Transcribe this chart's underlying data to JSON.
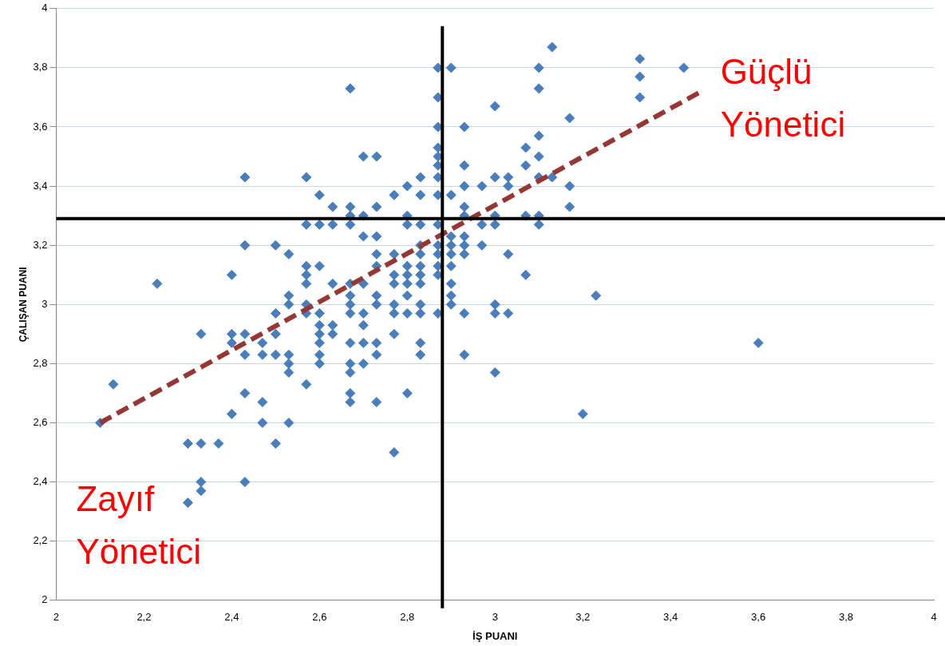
{
  "chart_data": {
    "type": "scatter",
    "xlabel": "İŞ PUANI",
    "ylabel": "ÇALIŞAN PUANI",
    "xlim": [
      2,
      4
    ],
    "ylim": [
      2,
      4
    ],
    "xticks": [
      2,
      {
        "value": 2.2,
        "label": "2,2"
      },
      {
        "value": 2.4,
        "label": "2,4"
      },
      {
        "value": 2.6,
        "label": "2,6"
      },
      {
        "value": 2.8,
        "label": "2,8"
      },
      3,
      {
        "value": 3.2,
        "label": "3,2"
      },
      {
        "value": 3.4,
        "label": "3,4"
      },
      {
        "value": 3.6,
        "label": "3,6"
      },
      {
        "value": 3.8,
        "label": "3,8"
      },
      4
    ],
    "yticks": [
      2,
      {
        "value": 2.2,
        "label": "2,2"
      },
      {
        "value": 2.4,
        "label": "2,4"
      },
      {
        "value": 2.6,
        "label": "2,6"
      },
      {
        "value": 2.8,
        "label": "2,8"
      },
      3,
      {
        "value": 3.2,
        "label": "3,2"
      },
      {
        "value": 3.4,
        "label": "3,4"
      },
      {
        "value": 3.6,
        "label": "3,6"
      },
      {
        "value": 3.8,
        "label": "3,8"
      },
      4
    ],
    "grid": "y",
    "legend": false,
    "series": [
      {
        "type": "scatter",
        "color": "#4a7ebb",
        "marker": "diamond",
        "x": [
          2.1,
          2.13,
          2.23,
          2.3,
          2.3,
          2.33,
          2.33,
          2.33,
          2.33,
          2.37,
          2.4,
          2.4,
          2.4,
          2.4,
          2.43,
          2.43,
          2.43,
          2.43,
          2.43,
          2.43,
          2.47,
          2.47,
          2.47,
          2.47,
          2.5,
          2.5,
          2.5,
          2.5,
          2.5,
          2.53,
          2.53,
          2.53,
          2.53,
          2.53,
          2.53,
          2.53,
          2.57,
          2.57,
          2.57,
          2.57,
          2.57,
          2.57,
          2.57,
          2.57,
          2.6,
          2.6,
          2.6,
          2.6,
          2.6,
          2.6,
          2.6,
          2.6,
          2.6,
          2.63,
          2.63,
          2.63,
          2.63,
          2.63,
          2.67,
          2.67,
          2.67,
          2.67,
          2.67,
          2.67,
          2.67,
          2.67,
          2.67,
          2.67,
          2.67,
          2.67,
          2.67,
          2.7,
          2.7,
          2.7,
          2.7,
          2.7,
          2.7,
          2.7,
          2.7,
          2.73,
          2.73,
          2.73,
          2.73,
          2.73,
          2.73,
          2.73,
          2.73,
          2.73,
          2.73,
          2.77,
          2.77,
          2.77,
          2.77,
          2.77,
          2.77,
          2.77,
          2.77,
          2.8,
          2.8,
          2.8,
          2.8,
          2.8,
          2.8,
          2.8,
          2.8,
          2.8,
          2.83,
          2.83,
          2.83,
          2.83,
          2.83,
          2.83,
          2.83,
          2.83,
          2.83,
          2.83,
          2.83,
          2.83,
          2.87,
          2.87,
          2.87,
          2.87,
          2.87,
          2.87,
          2.87,
          2.87,
          2.87,
          2.87,
          2.87,
          2.87,
          2.87,
          2.87,
          2.9,
          2.9,
          2.9,
          2.9,
          2.9,
          2.9,
          2.9,
          2.9,
          2.9,
          2.93,
          2.93,
          2.93,
          2.93,
          2.93,
          2.93,
          2.93,
          2.93,
          2.93,
          2.93,
          2.97,
          2.97,
          2.97,
          3.0,
          3.0,
          3.0,
          3.0,
          3.0,
          3.0,
          3.0,
          3.03,
          3.03,
          3.03,
          3.03,
          3.07,
          3.07,
          3.07,
          3.07,
          3.1,
          3.1,
          3.1,
          3.1,
          3.1,
          3.1,
          3.1,
          3.13,
          3.13,
          3.17,
          3.17,
          3.17,
          3.2,
          3.23,
          3.33,
          3.33,
          3.33,
          3.43,
          3.6
        ],
        "values": [
          2.6,
          2.73,
          3.07,
          2.53,
          2.33,
          2.53,
          2.4,
          2.37,
          2.9,
          2.53,
          3.1,
          2.9,
          2.87,
          2.63,
          3.43,
          3.2,
          2.9,
          2.83,
          2.7,
          2.4,
          2.87,
          2.83,
          2.67,
          2.6,
          3.2,
          2.97,
          2.9,
          2.83,
          2.53,
          3.17,
          3.03,
          3.0,
          2.83,
          2.8,
          2.77,
          2.6,
          3.43,
          3.27,
          3.13,
          3.1,
          3.07,
          3.0,
          2.97,
          2.73,
          3.37,
          3.27,
          3.13,
          2.97,
          2.93,
          2.9,
          2.87,
          2.83,
          2.8,
          3.33,
          3.27,
          3.07,
          2.93,
          2.9,
          3.73,
          3.33,
          3.3,
          3.27,
          3.07,
          3.03,
          3.0,
          2.97,
          2.87,
          2.8,
          2.77,
          2.7,
          2.67,
          3.5,
          3.3,
          3.23,
          3.07,
          2.97,
          2.93,
          2.87,
          2.8,
          3.5,
          3.33,
          3.23,
          3.17,
          3.13,
          3.03,
          3.0,
          2.87,
          2.83,
          2.67,
          3.37,
          3.17,
          3.1,
          3.07,
          3.0,
          2.97,
          2.9,
          2.5,
          3.4,
          3.3,
          3.27,
          3.13,
          3.1,
          3.07,
          3.03,
          2.97,
          2.7,
          3.43,
          3.37,
          3.27,
          3.2,
          3.17,
          3.13,
          3.1,
          3.07,
          3.0,
          2.97,
          2.87,
          2.83,
          3.8,
          3.7,
          3.6,
          3.53,
          3.5,
          3.47,
          3.43,
          3.37,
          3.27,
          3.2,
          3.17,
          3.13,
          3.1,
          2.97,
          3.8,
          3.37,
          3.23,
          3.2,
          3.17,
          3.13,
          3.07,
          3.03,
          3.0,
          3.6,
          3.47,
          3.4,
          3.33,
          3.3,
          3.23,
          3.2,
          3.17,
          2.97,
          2.83,
          3.4,
          3.27,
          3.2,
          3.67,
          3.43,
          3.3,
          3.27,
          3.0,
          2.97,
          2.77,
          3.43,
          3.4,
          3.17,
          2.97,
          3.53,
          3.47,
          3.3,
          3.1,
          3.8,
          3.73,
          3.57,
          3.5,
          3.43,
          3.3,
          3.27,
          3.87,
          3.43,
          3.63,
          3.4,
          3.33,
          2.63,
          3.03,
          3.83,
          3.77,
          3.7,
          3.8,
          2.87
        ]
      },
      {
        "type": "line",
        "color": "#953735",
        "marker": "none",
        "line_style": "dashed",
        "x": [
          2.1,
          3.47
        ],
        "values": [
          2.6,
          3.72
        ]
      }
    ],
    "ref_lines": [
      {
        "axis": "x",
        "value": 2.88,
        "color": "#000000"
      },
      {
        "axis": "y",
        "value": 3.29,
        "color": "#000000"
      }
    ],
    "annotations": [
      {
        "text": "Güçlü Yönetici",
        "x": 3.47,
        "y": 3.72
      },
      {
        "text": "Zayıf Yönetici",
        "x": 2.1,
        "y": 2.6
      }
    ]
  }
}
